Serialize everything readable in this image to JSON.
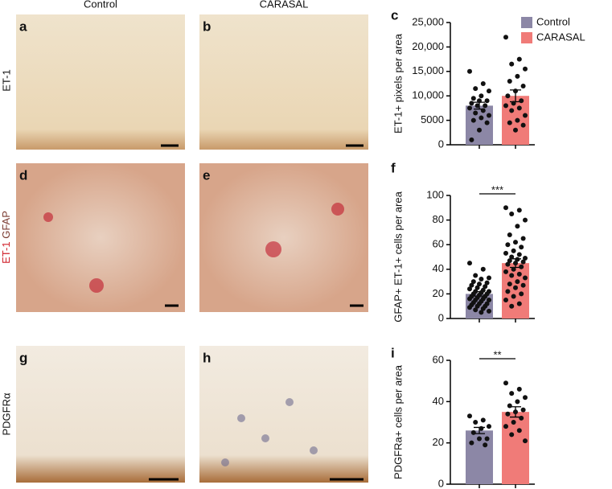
{
  "column_headers": [
    "Control",
    "CARASAL"
  ],
  "row_labels": [
    "ET-1",
    [
      "ET-1",
      "GFAP"
    ],
    "PDGFRα"
  ],
  "panel_labels": [
    "a",
    "b",
    "c",
    "d",
    "e",
    "f",
    "g",
    "h",
    "i"
  ],
  "chart_data": [
    {
      "type": "bar",
      "y_label": "ET-1+ pixels per area",
      "ylim": [
        0,
        25000
      ],
      "yticks": [
        0,
        5000,
        {
          "value": 10000,
          "label": "10,000"
        },
        {
          "value": 15000,
          "label": "15,000"
        },
        {
          "value": 20000,
          "label": "20,000"
        },
        {
          "value": 25000,
          "label": "25,000"
        }
      ],
      "series": [
        {
          "name": "Control",
          "color": "#8c87a6",
          "values": [
            8000
          ],
          "errors": [
            700
          ],
          "points": [
            15000,
            12500,
            11500,
            11000,
            10000,
            9500,
            9000,
            9000,
            8500,
            8000,
            8000,
            7500,
            7000,
            6500,
            6000,
            5500,
            5000,
            4500,
            3000,
            1000
          ]
        },
        {
          "name": "CARASAL",
          "color": "#f07b78",
          "values": [
            10000
          ],
          "errors": [
            1200
          ],
          "points": [
            22000,
            17500,
            16500,
            15500,
            14000,
            13000,
            12000,
            11000,
            10000,
            9000,
            8500,
            8000,
            7500,
            7000,
            6000,
            5000,
            4500,
            4000,
            3000
          ]
        }
      ]
    },
    {
      "type": "bar",
      "y_label": "GFAP+ ET-1+ cells per area",
      "annotation": "***",
      "ylim": [
        0,
        100
      ],
      "yticks": [
        0,
        20,
        40,
        60,
        80,
        100
      ],
      "series": [
        {
          "color": "#8c87a6",
          "values": [
            20
          ],
          "errors": [
            1.8
          ],
          "points": [
            45,
            40,
            35,
            33,
            32,
            30,
            29,
            28,
            27,
            26,
            25,
            24,
            23,
            22,
            22,
            21,
            20,
            20,
            19,
            18,
            18,
            17,
            16,
            16,
            15,
            15,
            14,
            13,
            12,
            12,
            11,
            10,
            10,
            9,
            8,
            7,
            6,
            5
          ]
        },
        {
          "color": "#f07b78",
          "values": [
            45
          ],
          "errors": [
            3.5
          ],
          "points": [
            90,
            88,
            85,
            80,
            75,
            68,
            65,
            62,
            60,
            58,
            55,
            53,
            52,
            50,
            49,
            48,
            47,
            46,
            45,
            44,
            42,
            40,
            38,
            36,
            35,
            33,
            30,
            28,
            27,
            25,
            22,
            20,
            18,
            15,
            12,
            10
          ]
        }
      ]
    },
    {
      "type": "bar",
      "y_label": "PDGFRa+ cells per area",
      "annotation": "**",
      "ylim": [
        0,
        60
      ],
      "yticks": [
        0,
        20,
        40,
        60
      ],
      "series": [
        {
          "color": "#8c87a6",
          "values": [
            26
          ],
          "errors": [
            1.5
          ],
          "points": [
            33,
            31,
            30,
            28,
            27,
            25,
            22,
            22,
            20,
            19
          ]
        },
        {
          "color": "#f07b78",
          "values": [
            35
          ],
          "errors": [
            2.5
          ],
          "points": [
            49,
            46,
            44,
            42,
            40,
            38,
            36,
            35,
            34,
            32,
            30,
            28,
            26,
            24,
            21
          ]
        }
      ]
    }
  ]
}
